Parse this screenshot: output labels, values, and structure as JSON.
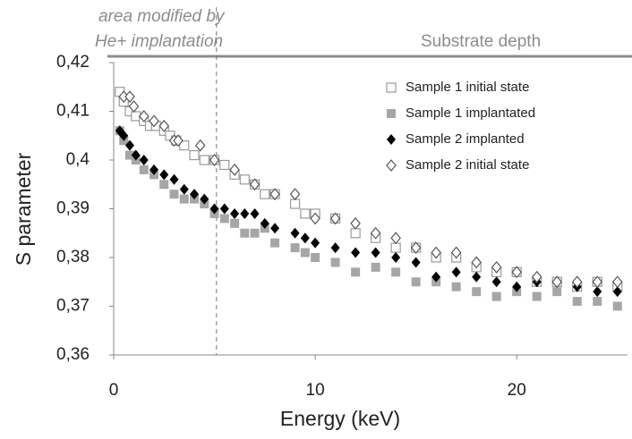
{
  "chart_data": {
    "type": "scatter",
    "annotations": [
      "area modified by",
      "He+ implantation",
      "Substrate depth"
    ],
    "x_label": "Energy (keV)",
    "y_label": "S parameter",
    "vline": 5.1,
    "xlim": [
      0,
      25.5
    ],
    "xticks": [
      0,
      10,
      20
    ],
    "ylim": [
      0.36,
      0.42
    ],
    "yticks": [
      {
        "value": 0.36,
        "label": "0,36"
      },
      {
        "value": 0.37,
        "label": "0,37"
      },
      {
        "value": 0.38,
        "label": "0,38"
      },
      {
        "value": 0.39,
        "label": "0,39"
      },
      {
        "value": 0.4,
        "label": "0,4"
      },
      {
        "value": 0.41,
        "label": "0,41"
      },
      {
        "value": 0.42,
        "label": "0,42"
      }
    ],
    "legend": "top-right",
    "series": [
      {
        "name": "Sample 1 initial state",
        "color": "#999999",
        "marker": "square-open",
        "x": [
          0.3,
          0.5,
          0.8,
          1.1,
          1.5,
          1.8,
          2.1,
          2.5,
          2.8,
          3.1,
          3.5,
          4.0,
          4.5,
          5.0,
          5.5,
          6.0,
          6.5,
          7.0,
          7.5,
          8.0,
          9.0,
          9.5,
          10,
          11,
          12,
          13,
          14,
          15,
          16,
          17,
          18,
          19,
          20,
          21,
          22,
          23,
          24,
          25
        ],
        "values": [
          0.414,
          0.412,
          0.41,
          0.409,
          0.408,
          0.407,
          0.407,
          0.406,
          0.405,
          0.404,
          0.403,
          0.401,
          0.4,
          0.4,
          0.399,
          0.397,
          0.396,
          0.395,
          0.393,
          0.393,
          0.391,
          0.389,
          0.389,
          0.388,
          0.385,
          0.384,
          0.382,
          0.382,
          0.38,
          0.38,
          0.378,
          0.377,
          0.377,
          0.375,
          0.375,
          0.374,
          0.375,
          0.374
        ]
      },
      {
        "name": "Sample 1 implantated",
        "color": "#a6a6a6",
        "marker": "square",
        "x": [
          0.3,
          0.5,
          0.8,
          1.1,
          1.5,
          2.0,
          2.5,
          3.0,
          3.5,
          4.0,
          4.5,
          5.0,
          5.5,
          6.0,
          6.5,
          7.0,
          7.5,
          8.0,
          9.0,
          9.5,
          10,
          11,
          12,
          13,
          14,
          15,
          16,
          17,
          18,
          19,
          20,
          21,
          22,
          23,
          24,
          25
        ],
        "values": [
          0.406,
          0.404,
          0.401,
          0.4,
          0.398,
          0.397,
          0.395,
          0.393,
          0.392,
          0.392,
          0.391,
          0.389,
          0.388,
          0.387,
          0.385,
          0.385,
          0.386,
          0.383,
          0.382,
          0.381,
          0.38,
          0.379,
          0.377,
          0.378,
          0.377,
          0.375,
          0.375,
          0.374,
          0.373,
          0.372,
          0.373,
          0.372,
          0.373,
          0.371,
          0.371,
          0.37
        ]
      },
      {
        "name": "Sample 2 implanted",
        "color": "#000000",
        "marker": "diamond",
        "x": [
          0.3,
          0.5,
          0.8,
          1.1,
          1.5,
          2.0,
          2.5,
          3.0,
          3.5,
          4.0,
          4.5,
          5.0,
          5.5,
          6.0,
          6.5,
          7.0,
          7.5,
          8.0,
          9.0,
          9.5,
          10,
          11,
          12,
          13,
          14,
          15,
          16,
          17,
          18,
          19,
          20,
          21,
          22,
          23,
          24,
          25
        ],
        "values": [
          0.406,
          0.405,
          0.403,
          0.401,
          0.4,
          0.398,
          0.397,
          0.396,
          0.394,
          0.393,
          0.392,
          0.39,
          0.39,
          0.389,
          0.389,
          0.389,
          0.387,
          0.386,
          0.385,
          0.384,
          0.383,
          0.382,
          0.381,
          0.381,
          0.38,
          0.379,
          0.376,
          0.377,
          0.376,
          0.375,
          0.374,
          0.375,
          0.375,
          0.374,
          0.373,
          0.373
        ]
      },
      {
        "name": "Sample 2 initial state",
        "color": "#555555",
        "marker": "diamond-open",
        "x": [
          0.5,
          0.8,
          1.0,
          1.5,
          2.0,
          2.5,
          3.0,
          3.2,
          4.3,
          5.0,
          6.0,
          7.0,
          8.0,
          9.0,
          10,
          11,
          12,
          13,
          14,
          15,
          16,
          17,
          18,
          19,
          20,
          21,
          22,
          23,
          24,
          25
        ],
        "values": [
          0.413,
          0.413,
          0.411,
          0.409,
          0.408,
          0.407,
          0.404,
          0.404,
          0.403,
          0.4,
          0.398,
          0.395,
          0.393,
          0.393,
          0.388,
          0.388,
          0.387,
          0.385,
          0.384,
          0.382,
          0.381,
          0.381,
          0.379,
          0.378,
          0.377,
          0.376,
          0.375,
          0.375,
          0.375,
          0.375
        ]
      }
    ]
  }
}
